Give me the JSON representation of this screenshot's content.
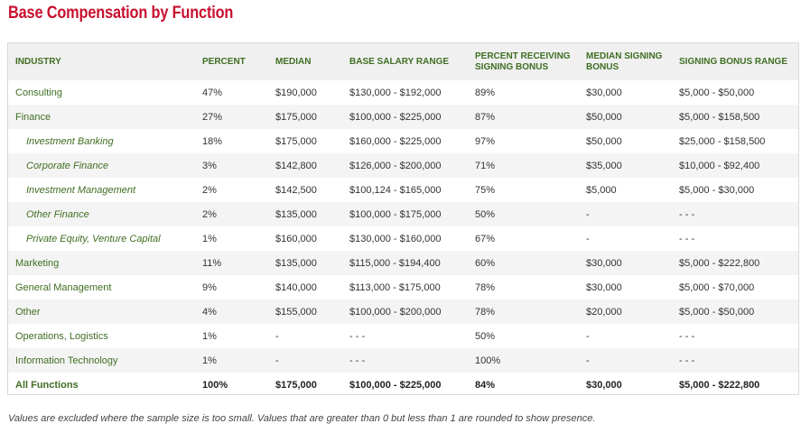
{
  "title": "Base Compensation by Function",
  "columns": [
    "INDUSTRY",
    "PERCENT",
    "MEDIAN",
    "BASE SALARY RANGE",
    "PERCENT RECEIVING SIGNING BONUS",
    "MEDIAN SIGNING BONUS",
    "SIGNING BONUS RANGE"
  ],
  "rows": [
    {
      "industry": "Consulting",
      "sub": false,
      "percent": "47%",
      "median": "$190,000",
      "range": "$130,000 - $192,000",
      "pct_bonus": "89%",
      "median_bonus": "$30,000",
      "bonus_range": "$5,000 - $50,000"
    },
    {
      "industry": "Finance",
      "sub": false,
      "percent": "27%",
      "median": "$175,000",
      "range": "$100,000 - $225,000",
      "pct_bonus": "87%",
      "median_bonus": "$50,000",
      "bonus_range": "$5,000 - $158,500"
    },
    {
      "industry": "Investment Banking",
      "sub": true,
      "percent": "18%",
      "median": "$175,000",
      "range": "$160,000 - $225,000",
      "pct_bonus": "97%",
      "median_bonus": "$50,000",
      "bonus_range": "$25,000 - $158,500"
    },
    {
      "industry": "Corporate Finance",
      "sub": true,
      "percent": "3%",
      "median": "$142,800",
      "range": "$126,000 - $200,000",
      "pct_bonus": "71%",
      "median_bonus": "$35,000",
      "bonus_range": "$10,000 - $92,400"
    },
    {
      "industry": "Investment Management",
      "sub": true,
      "percent": "2%",
      "median": "$142,500",
      "range": "$100,124 - $165,000",
      "pct_bonus": "75%",
      "median_bonus": "$5,000",
      "bonus_range": "$5,000 - $30,000"
    },
    {
      "industry": "Other Finance",
      "sub": true,
      "percent": "2%",
      "median": "$135,000",
      "range": "$100,000 - $175,000",
      "pct_bonus": "50%",
      "median_bonus": "-",
      "bonus_range": "- - -"
    },
    {
      "industry": "Private Equity, Venture Capital",
      "sub": true,
      "percent": "1%",
      "median": "$160,000",
      "range": "$130,000 - $160,000",
      "pct_bonus": "67%",
      "median_bonus": "-",
      "bonus_range": "- - -"
    },
    {
      "industry": "Marketing",
      "sub": false,
      "percent": "11%",
      "median": "$135,000",
      "range": "$115,000 - $194,400",
      "pct_bonus": "60%",
      "median_bonus": "$30,000",
      "bonus_range": "$5,000 - $222,800"
    },
    {
      "industry": "General Management",
      "sub": false,
      "percent": "9%",
      "median": "$140,000",
      "range": "$113,000 - $175,000",
      "pct_bonus": "78%",
      "median_bonus": "$30,000",
      "bonus_range": "$5,000 - $70,000"
    },
    {
      "industry": "Other",
      "sub": false,
      "percent": "4%",
      "median": "$155,000",
      "range": "$100,000 - $200,000",
      "pct_bonus": "78%",
      "median_bonus": "$20,000",
      "bonus_range": "$5,000 - $50,000"
    },
    {
      "industry": "Operations, Logistics",
      "sub": false,
      "percent": "1%",
      "median": "-",
      "range": "- - -",
      "pct_bonus": "50%",
      "median_bonus": "-",
      "bonus_range": "- - -"
    },
    {
      "industry": "Information Technology",
      "sub": false,
      "percent": "1%",
      "median": "-",
      "range": "- - -",
      "pct_bonus": "100%",
      "median_bonus": "-",
      "bonus_range": "- - -"
    }
  ],
  "total": {
    "industry": "All Functions",
    "percent": "100%",
    "median": "$175,000",
    "range": "$100,000 - $225,000",
    "pct_bonus": "84%",
    "median_bonus": "$30,000",
    "bonus_range": "$5,000 - $222,800"
  },
  "footnote": "Values are excluded where the sample size is too small. Values that are greater than 0 but less than 1 are rounded to show presence.",
  "colors": {
    "title": "#c8102e",
    "header_text": "#3f6e22",
    "industry_text": "#3f6e22"
  }
}
